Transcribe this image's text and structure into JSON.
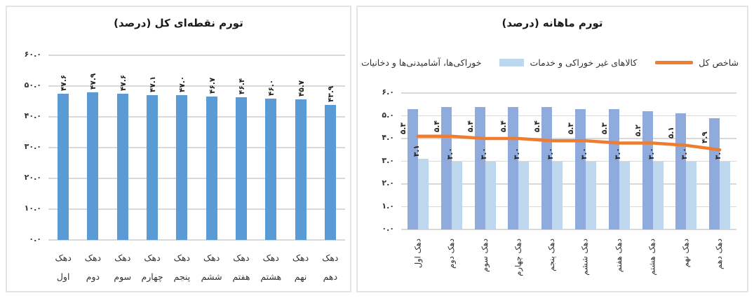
{
  "left_chart": {
    "panel": "point-to-point-inflation"
  },
  "right_chart": {
    "panel": "monthly-inflation",
    "legend_position": "top-right"
  },
  "chart_data": [
    {
      "id": "point_to_point_total_inflation",
      "type": "bar",
      "title": "تورم نقطه‌ای کل (درصد)",
      "categories": [
        "دهک اول",
        "دهک دوم",
        "دهک سوم",
        "دهک چهارم",
        "دهک پنجم",
        "دهک ششم",
        "دهک هفتم",
        "دهک هشتم",
        "دهک نهم",
        "دهک دهم"
      ],
      "values": [
        47.6,
        47.9,
        47.6,
        47.1,
        47.0,
        46.7,
        46.4,
        46.0,
        45.7,
        43.9
      ],
      "value_labels": [
        "۴۷.۶",
        "۴۷.۹",
        "۴۷.۶",
        "۴۷.۱",
        "۴۷.۰",
        "۴۶.۷",
        "۴۶.۴",
        "۴۶.۰",
        "۴۵.۷",
        "۴۳.۹"
      ],
      "bar_color": "#5B9BD5",
      "ylim": [
        0,
        60
      ],
      "y_ticks": [
        0,
        10,
        20,
        30,
        40,
        50,
        60
      ],
      "y_tick_labels": [
        "۰.۰",
        "۱۰.۰",
        "۲۰.۰",
        "۳۰.۰",
        "۴۰.۰",
        "۵۰.۰",
        "۶۰.۰"
      ],
      "grid": true,
      "legend": false,
      "xlabel": "",
      "ylabel": ""
    },
    {
      "id": "monthly_inflation",
      "type": "bar+line",
      "title": "تورم ماهانه (درصد)",
      "categories": [
        "دهک اول",
        "دهک دوم",
        "دهک سوم",
        "دهک چهارم",
        "دهک پنجم",
        "دهک ششم",
        "دهک هفتم",
        "دهک هشتم",
        "دهک نهم",
        "دهک دهم"
      ],
      "series": [
        {
          "name": "خوراکی‌ها، آشامیدنی‌ها و دخانیات",
          "type": "bar",
          "color": "#8FAADC",
          "values": [
            5.3,
            5.4,
            5.4,
            5.4,
            5.4,
            5.3,
            5.3,
            5.2,
            5.1,
            4.9
          ],
          "value_labels": [
            "۵.۳",
            "۵.۴",
            "۵.۴",
            "۵.۴",
            "۵.۴",
            "۵.۳",
            "۵.۳",
            "۵.۲",
            "۵.۱",
            "۴.۹"
          ]
        },
        {
          "name": "کالاهای غیر خوراکی و خدمات",
          "type": "bar",
          "color": "#BDD7EE",
          "values": [
            3.1,
            3.0,
            3.0,
            3.0,
            3.0,
            3.0,
            3.0,
            3.0,
            3.0,
            3.0
          ],
          "value_labels": [
            "۳.۱",
            "۳.۰",
            "۳.۰",
            "۳.۰",
            "۳.۰",
            "۳.۰",
            "۳.۰",
            "۳.۰",
            "۳.۰",
            "۳.۰"
          ]
        },
        {
          "name": "شاخص کل",
          "type": "line",
          "color": "#ED7D31",
          "values": [
            4.1,
            4.1,
            4.0,
            4.0,
            3.9,
            3.9,
            3.8,
            3.8,
            3.7,
            3.5
          ],
          "value_labels": []
        }
      ],
      "ylim": [
        0,
        6
      ],
      "y_ticks": [
        0,
        1,
        2,
        3,
        4,
        5,
        6
      ],
      "y_tick_labels": [
        "۰.۰",
        "۱.۰",
        "۲.۰",
        "۳.۰",
        "۴.۰",
        "۵.۰",
        "۶.۰"
      ],
      "grid": true,
      "legend": true,
      "xlabel": "",
      "ylabel": ""
    }
  ]
}
